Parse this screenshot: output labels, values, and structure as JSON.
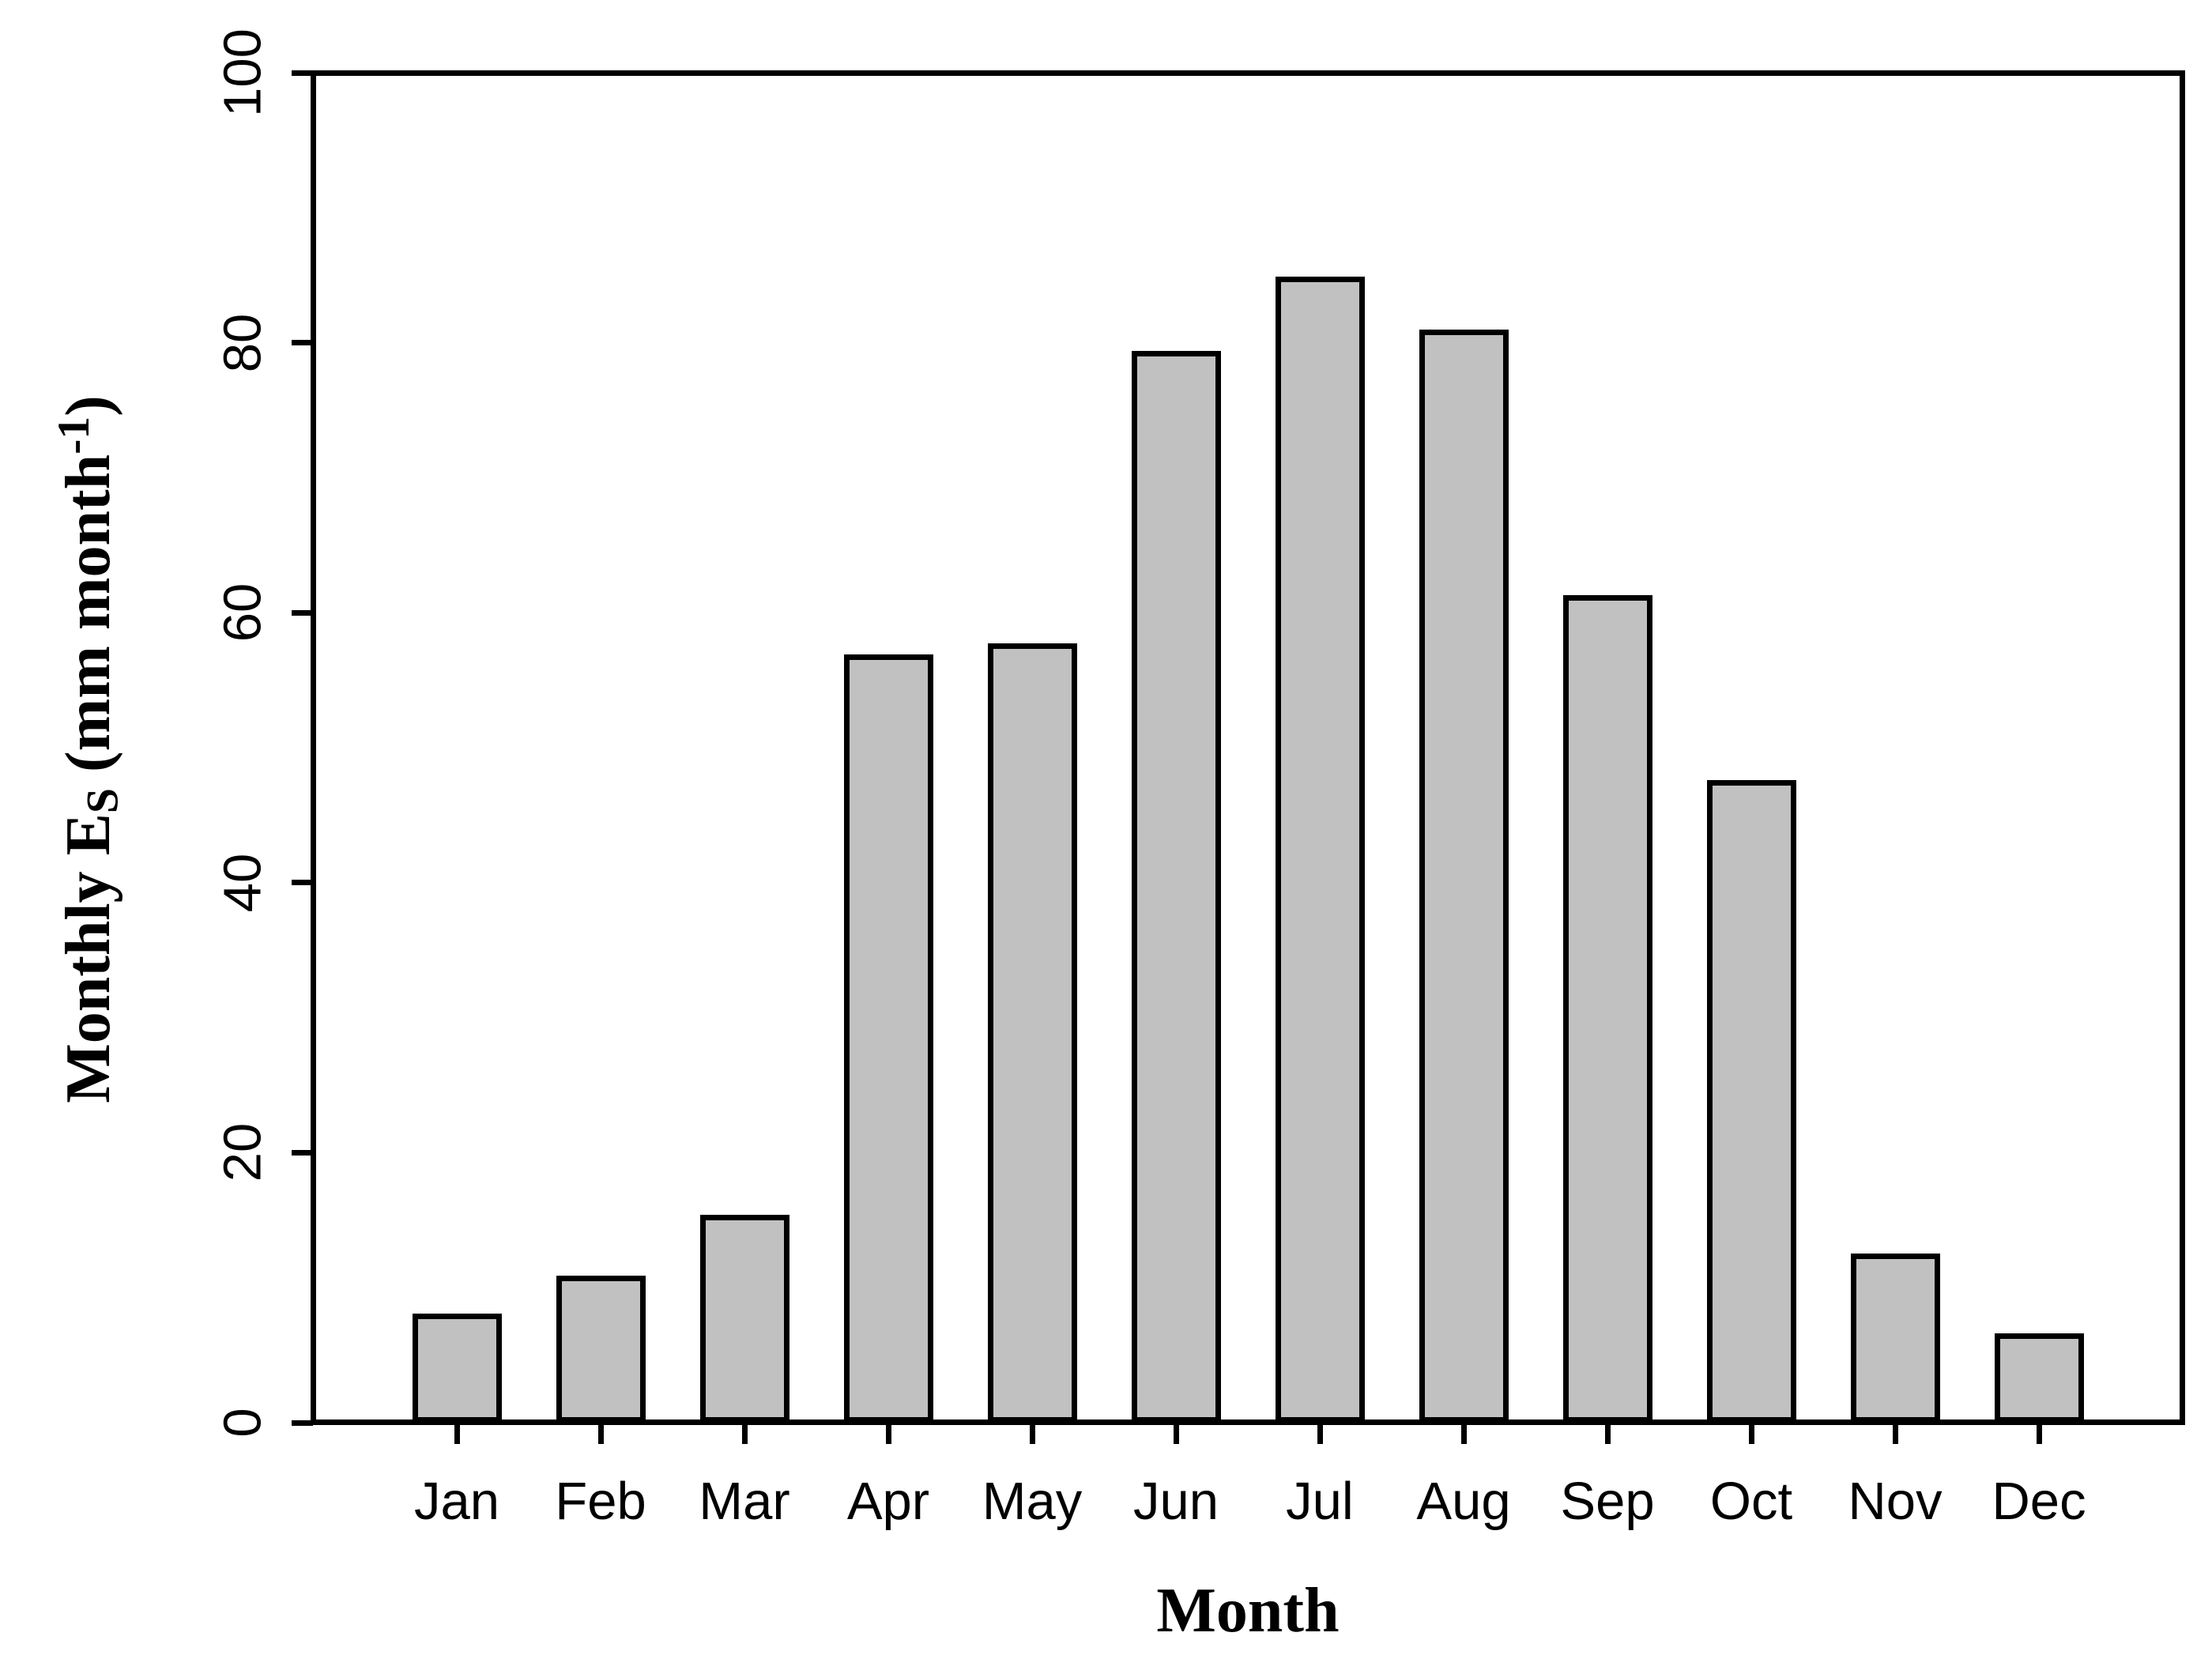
{
  "figure": {
    "background": "#ffffff"
  },
  "chart_data": {
    "type": "bar",
    "categories": [
      "Jan",
      "Feb",
      "Mar",
      "Apr",
      "May",
      "Jun",
      "Jul",
      "Aug",
      "Sep",
      "Oct",
      "Nov",
      "Dec"
    ],
    "values": [
      8.1,
      10.9,
      15.4,
      56.9,
      57.7,
      79.4,
      84.9,
      81.0,
      61.3,
      47.6,
      12.5,
      6.6
    ],
    "title": "",
    "xlabel": "Month",
    "ylabel": "Monthly E_S (mm month^-1)",
    "ylabel_parts": {
      "prefix": "Monthly E",
      "subscript": "S",
      "middle": " (mm month",
      "superscript": "-1",
      "suffix": ")"
    },
    "ylim": [
      0,
      100
    ],
    "yticks": [
      0,
      20,
      40,
      60,
      80,
      100
    ],
    "grid": false,
    "legend_position": "none",
    "bar_fill": "#c1c1c1",
    "bar_stroke": "#000000",
    "axis_color": "#000000",
    "text_color": "#000000"
  }
}
